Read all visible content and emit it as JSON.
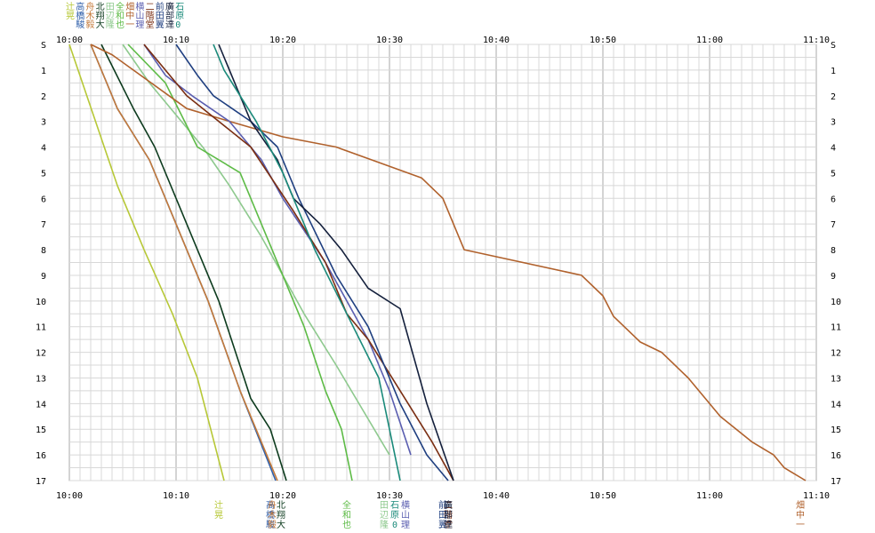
{
  "chart_data": {
    "type": "line",
    "title": "",
    "xlabel": "",
    "ylabel": "",
    "x_axis_type": "time",
    "xlim": [
      "10:00",
      "11:10"
    ],
    "x_ticks": [
      "10:00",
      "10:10",
      "10:20",
      "10:30",
      "10:40",
      "10:50",
      "11:00",
      "11:10"
    ],
    "ylim": [
      0,
      17
    ],
    "y_ticks": [
      "S",
      "1",
      "2",
      "3",
      "4",
      "5",
      "6",
      "7",
      "8",
      "9",
      "10",
      "11",
      "12",
      "13",
      "14",
      "15",
      "16",
      "17"
    ],
    "grid": true,
    "legend_position": "top-left",
    "series": [
      {
        "name": "辻 晃",
        "color": "#b7c837",
        "x": [
          "10:00:00",
          "10:04:30",
          "10:07:00",
          "10:09:40",
          "10:12:00",
          "10:14:30"
        ],
        "y": [
          0,
          5.5,
          8,
          10.5,
          13,
          17
        ]
      },
      {
        "name": "高橋 駿",
        "color": "#2f5faa",
        "x": [
          "10:02:00",
          "10:04:30",
          "10:07:30",
          "10:10:00",
          "10:13:00",
          "10:16:00",
          "10:19:20"
        ],
        "y": [
          0,
          2.5,
          4.5,
          7,
          10,
          13.5,
          17
        ]
      },
      {
        "name": "舟木 毅",
        "color": "#c47a3a",
        "x": [
          "10:02:00",
          "10:04:30",
          "10:07:30",
          "10:10:00",
          "10:13:00",
          "10:16:00",
          "10:19:30"
        ],
        "y": [
          0,
          2.5,
          4.5,
          7,
          10,
          13.5,
          17
        ]
      },
      {
        "name": "北 翔大",
        "color": "#0d3b1e",
        "x": [
          "10:03:00",
          "10:06:00",
          "10:08:00",
          "10:10:30",
          "10:14:00",
          "10:17:00",
          "10:18:50",
          "10:20:20"
        ],
        "y": [
          0,
          2.5,
          4,
          6.5,
          10,
          13.8,
          15,
          17
        ]
      },
      {
        "name": "田辺 隆",
        "color": "#8ec98e",
        "x": [
          "10:05:00",
          "10:07:30",
          "10:10:30",
          "10:12:30",
          "10:15:00",
          "10:18:00",
          "10:22:00",
          "10:25:00",
          "10:30:00"
        ],
        "y": [
          0,
          1.5,
          3,
          4,
          5.5,
          7.5,
          10.5,
          12.5,
          16
        ]
      },
      {
        "name": "全 和也",
        "color": "#5dbb46",
        "x": [
          "10:05:30",
          "10:09:00",
          "10:12:00",
          "10:16:00",
          "10:19:00",
          "10:22:00",
          "10:24:00",
          "10:25:30",
          "10:26:30"
        ],
        "y": [
          0,
          1.5,
          4,
          5,
          8,
          11,
          13.5,
          15,
          17
        ]
      },
      {
        "name": "畑中 一敏",
        "color": "#b0612c",
        "x": [
          "10:02:00",
          "10:04:00",
          "10:06:00",
          "10:11:00",
          "10:15:00",
          "10:20:00",
          "10:25:00",
          "10:29:00",
          "10:33:00",
          "10:35:00",
          "10:37:00",
          "10:48:00",
          "10:50:00",
          "10:51:00",
          "10:53:30",
          "10:55:30",
          "10:58:00",
          "11:01:00",
          "11:04:00",
          "11:06:00",
          "11:07:00",
          "11:09:00"
        ],
        "y": [
          0,
          0.4,
          1,
          2.5,
          3,
          3.6,
          4,
          4.6,
          5.2,
          6,
          8,
          9,
          9.8,
          10.6,
          11.6,
          12,
          13,
          14.5,
          15.5,
          16,
          16.5,
          17
        ]
      },
      {
        "name": "横山 理",
        "color": "#5a5eb0",
        "x": [
          "10:07:00",
          "10:09:00",
          "10:11:30",
          "10:15:00",
          "10:18:00",
          "10:20:00",
          "10:24:00",
          "10:28:00",
          "10:30:00",
          "10:32:00"
        ],
        "y": [
          0,
          1.2,
          2,
          3,
          4.5,
          6,
          8.5,
          11.5,
          13.5,
          16
        ]
      },
      {
        "name": "二階堂 洋",
        "color": "#7a2e12",
        "x": [
          "10:07:00",
          "10:09:00",
          "10:11:00",
          "10:14:00",
          "10:17:00",
          "10:21:00",
          "10:24:00",
          "10:26:00",
          "10:28:00",
          "10:31:00",
          "10:34:00",
          "10:36:00"
        ],
        "y": [
          0,
          1,
          2,
          3,
          4,
          6.5,
          8.5,
          10.5,
          11.5,
          13.5,
          15.5,
          17
        ]
      },
      {
        "name": "前田 翼",
        "color": "#1f3f80",
        "x": [
          "10:10:00",
          "10:12:00",
          "10:13:30",
          "10:17:00",
          "10:19:30",
          "10:21:30",
          "10:25:00",
          "10:28:00",
          "10:31:00",
          "10:33:30",
          "10:35:30"
        ],
        "y": [
          0,
          1.2,
          2,
          3,
          4,
          6,
          9,
          11,
          14,
          16,
          17
        ]
      },
      {
        "name": "廣部 達",
        "color": "#14203c",
        "x": [
          "10:14:00",
          "10:15:30",
          "10:17:00",
          "10:19:30",
          "10:21:00",
          "10:23:30",
          "10:25:30",
          "10:28:00",
          "10:31:00",
          "10:33:30",
          "10:36:00"
        ],
        "y": [
          0,
          1.5,
          3,
          4.5,
          6,
          7,
          8,
          9.5,
          10.3,
          14,
          17
        ]
      },
      {
        "name": "石原 0",
        "color": "#1a8a7a",
        "x": [
          "10:13:30",
          "10:14:30",
          "10:16:00",
          "10:17:30",
          "10:20:00",
          "10:23:00",
          "10:26:00",
          "10:29:00",
          "10:31:00"
        ],
        "y": [
          0,
          1,
          2,
          3,
          5,
          8,
          10.5,
          13,
          17
        ]
      }
    ]
  }
}
